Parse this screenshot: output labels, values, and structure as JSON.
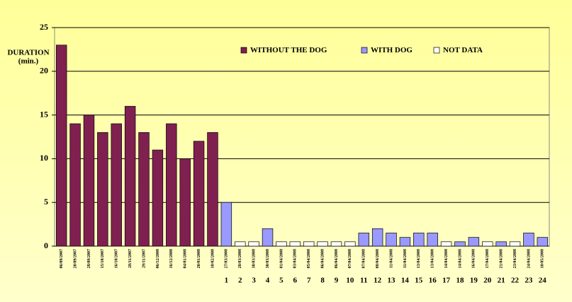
{
  "chart_data": {
    "type": "bar",
    "ylabel_lines": [
      "DURATION",
      "(min.)"
    ],
    "categories": [
      "06/09/2007",
      "20/09/2007",
      "28/09/2007",
      "15/10/2007",
      "16/10/2007",
      "28/11/2007",
      "29/11/2007",
      "06/12/2008",
      "16/12/2008",
      "04/01/2008",
      "20/01/2008",
      "10/02/2008",
      "27/03/2008",
      "28/03/2008",
      "30/03/2008",
      "30/03/2008",
      "01/04/2008",
      "03/04/2008",
      "05/04/2008",
      "06/04/2008",
      "06/04/2008",
      "07/04/2008",
      "07/04/2008",
      "08/04/2008",
      "11/04/2008",
      "11/04/2008",
      "13/04/2008",
      "13/04/2008",
      "14/04/2008",
      "14/04/2008",
      "16/04/2008",
      "17/04/2008",
      "21/04/2008",
      "23/04/2008",
      "24/04/2008",
      "10/05/2008"
    ],
    "day_numbers": [
      1,
      2,
      3,
      4,
      5,
      6,
      7,
      8,
      9,
      10,
      11,
      12,
      13,
      14,
      15,
      16,
      17,
      18,
      19,
      20,
      21,
      22,
      23,
      24
    ],
    "series": [
      {
        "name": "WITHOUT THE DOG",
        "color": "#802050",
        "values": [
          23,
          14,
          15,
          13,
          14,
          16,
          13,
          11,
          14,
          10,
          12,
          13,
          null,
          null,
          null,
          null,
          null,
          null,
          null,
          null,
          null,
          null,
          null,
          null,
          null,
          null,
          null,
          null,
          null,
          null,
          null,
          null,
          null,
          null,
          null,
          null
        ]
      },
      {
        "name": "WITH DOG",
        "color": "#9999ff",
        "values": [
          null,
          null,
          null,
          null,
          null,
          null,
          null,
          null,
          null,
          null,
          null,
          null,
          5,
          null,
          null,
          2,
          null,
          null,
          null,
          null,
          null,
          null,
          1.5,
          2,
          1.5,
          1,
          1.5,
          1.5,
          null,
          0.5,
          1,
          null,
          0.5,
          null,
          1.5,
          1
        ]
      },
      {
        "name": "NOT DATA",
        "color": "#ffffff",
        "values": [
          null,
          null,
          null,
          null,
          null,
          null,
          null,
          null,
          null,
          null,
          null,
          null,
          null,
          0.5,
          0.5,
          null,
          0.5,
          0.5,
          0.5,
          0.5,
          0.5,
          0.5,
          null,
          null,
          null,
          null,
          null,
          null,
          0.5,
          null,
          null,
          0.5,
          null,
          0.5,
          null,
          null
        ]
      }
    ],
    "ylim": [
      0,
      25
    ],
    "yticks": [
      0,
      5,
      10,
      15,
      20,
      25
    ],
    "grid": true,
    "legend": "top-right"
  }
}
